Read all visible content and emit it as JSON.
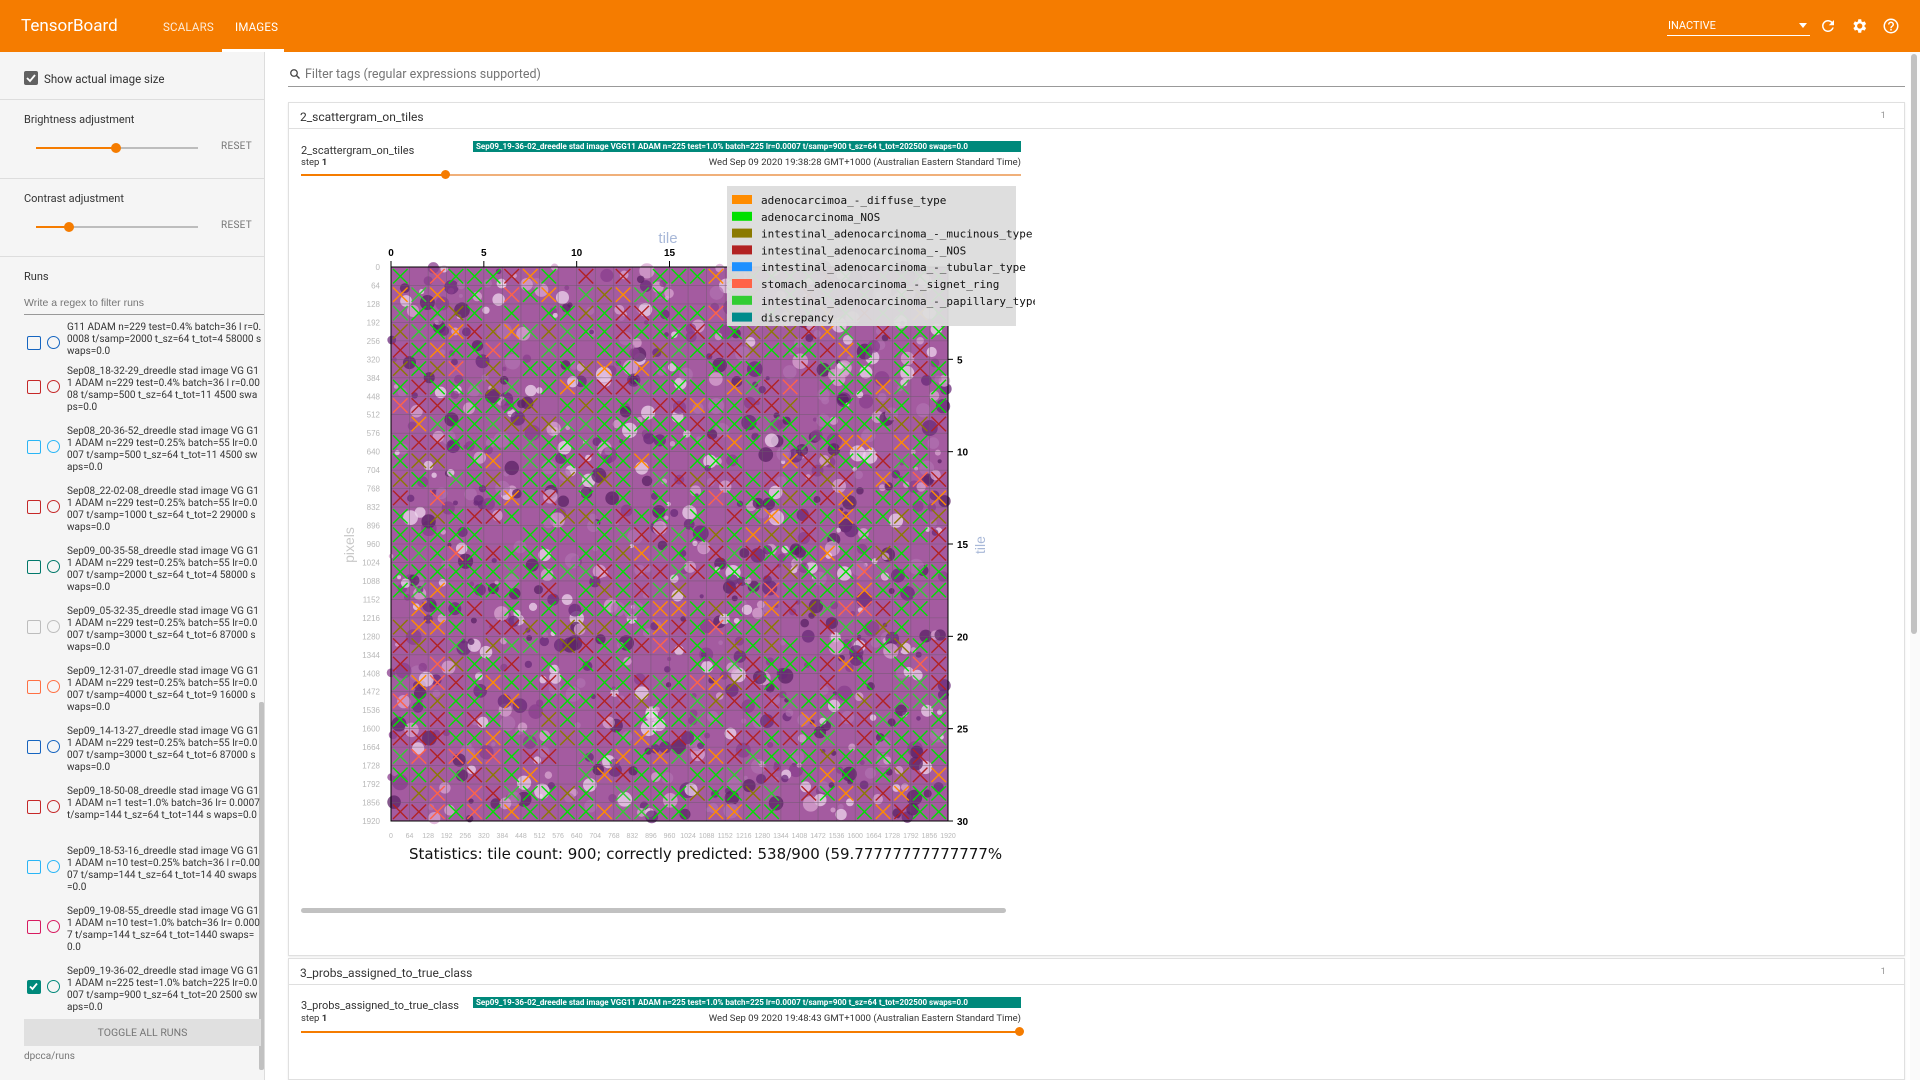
{
  "topbar": {
    "brand": "TensorBoard",
    "tabs": [
      {
        "label": "SCALARS"
      },
      {
        "label": "IMAGES",
        "active": true
      }
    ],
    "run_select": "INACTIVE",
    "icons": [
      "refresh-icon",
      "settings-icon",
      "help-icon"
    ],
    "color": "#f57c00"
  },
  "sidebar": {
    "show_actual_size": {
      "label": "Show actual image size",
      "checked": true
    },
    "brightness": {
      "label": "Brightness adjustment",
      "reset": "RESET",
      "level": 0.5
    },
    "contrast": {
      "label": "Contrast adjustment",
      "reset": "RESET",
      "level": 0.2
    },
    "runs_label": "Runs",
    "runs_placeholder": "Write a regex to filter runs",
    "runs": [
      {
        "text": "G11 ADAM n=229 test=0.4% batch=36 l r=0.0008 t/samp=2000 t_sz=64 t_tot=4 58000 swaps=0.0",
        "color": "#1565c0",
        "checked": false
      },
      {
        "text": "Sep08_18-32-29_dreedle stad image VG G11 ADAM n=229 test=0.4% batch=36 l r=0.0008 t/samp=500 t_sz=64 t_tot=11 4500 swaps=0.0",
        "color": "#c62828",
        "checked": false
      },
      {
        "text": "Sep08_20-36-52_dreedle stad image VG G11 ADAM n=229 test=0.25% batch=55 lr=0.0007 t/samp=500 t_sz=64 t_tot=11 4500 swaps=0.0",
        "color": "#29b6f6",
        "checked": false
      },
      {
        "text": "Sep08_22-02-08_dreedle stad image VG G11 ADAM n=229 test=0.25% batch=55 lr=0.0007 t/samp=1000 t_sz=64 t_tot=2 29000 swaps=0.0",
        "color": "#c62828",
        "checked": false
      },
      {
        "text": "Sep09_00-35-58_dreedle stad image VG G11 ADAM n=229 test=0.25% batch=55 lr=0.0007 t/samp=2000 t_sz=64 t_tot=4 58000 swaps=0.0",
        "color": "#00796b",
        "checked": false
      },
      {
        "text": "Sep09_05-32-35_dreedle stad image VG G11 ADAM n=229 test=0.25% batch=55 lr=0.0007 t/samp=3000 t_sz=64 t_tot=6 87000 swaps=0.0",
        "color": "#bdbdbd",
        "checked": false
      },
      {
        "text": "Sep09_12-31-07_dreedle stad image VG G11 ADAM n=229 test=0.25% batch=55 lr=0.0007 t/samp=4000 t_sz=64 t_tot=9 16000 swaps=0.0",
        "color": "#ff7043",
        "checked": false
      },
      {
        "text": "Sep09_14-13-27_dreedle stad image VG G11 ADAM n=229 test=0.25% batch=55 lr=0.0007 t/samp=3000 t_sz=64 t_tot=6 87000 swaps=0.0",
        "color": "#1565c0",
        "checked": false
      },
      {
        "text": "Sep09_18-50-08_dreedle stad image VG G11 ADAM n=1 test=1.0% batch=36 lr= 0.0007 t/samp=144 t_sz=64 t_tot=144 s waps=0.0",
        "color": "#c62828",
        "checked": false
      },
      {
        "text": "Sep09_18-53-16_dreedle stad image VG G11 ADAM n=10 test=0.25% batch=36 l r=0.0007 t/samp=144 t_sz=64 t_tot=14 40 swaps=0.0",
        "color": "#29b6f6",
        "checked": false
      },
      {
        "text": "Sep09_19-08-55_dreedle stad image VG G11 ADAM n=10 test=1.0% batch=36 lr= 0.0007 t/samp=144 t_sz=64 t_tot=1440 swaps=0.0",
        "color": "#d81b60",
        "checked": false
      },
      {
        "text": "Sep09_19-36-02_dreedle stad image VG G11 ADAM n=225 test=1.0% batch=225 lr=0.0007 t/samp=900 t_sz=64 t_tot=20 2500 swaps=0.0",
        "color": "#00897b",
        "checked": true
      }
    ],
    "toggle_all": "TOGGLE ALL RUNS",
    "logdir": "dpcca/runs"
  },
  "main": {
    "filter_placeholder": "Filter tags (regular expressions supported)",
    "sections": [
      {
        "title": "2_scattergram_on_tiles",
        "count": "1",
        "card": {
          "title": "2_scattergram_on_tiles",
          "step_label": "step",
          "step_value": "1",
          "step_level": 0.2,
          "run": "Sep09_19-36-02_dreedle stad image VGG11 ADAM n=225 test=1.0% batch=225 lr=0.0007 t/samp=900 t_sz=64 t_tot=202500 swaps=0.0",
          "timestamp": "Wed Sep 09 2020 19:38:28 GMT+1000 (Australian Eastern Standard Time)"
        }
      },
      {
        "title": "3_probs_assigned_to_true_class",
        "count": "1",
        "card": {
          "title": "3_probs_assigned_to_true_class",
          "step_label": "step",
          "step_value": "1",
          "step_level": 1.0,
          "run": "Sep09_19-36-02_dreedle stad image VGG11 ADAM n=225 test=1.0% batch=225 lr=0.0007 t/samp=900 t_sz=64 t_tot=202500 swaps=0.0",
          "timestamp": "Wed Sep 09 2020 19:48:43 GMT+1000 (Australian Eastern Standard Time)"
        }
      }
    ],
    "figure": {
      "top_axis_label": "tile",
      "right_axis_label": "tile",
      "left_axis_label": "pixels",
      "top_ticks": [
        "0",
        "5",
        "10",
        "15"
      ],
      "right_ticks": [
        "5",
        "10",
        "15",
        "20",
        "25",
        "30"
      ],
      "left_ticks": [
        "0",
        "64",
        "128",
        "192",
        "256",
        "320",
        "384",
        "448",
        "512",
        "576",
        "640",
        "704",
        "768",
        "832",
        "896",
        "960",
        "1024",
        "1088",
        "1152",
        "1216",
        "1280",
        "1344",
        "1408",
        "1472",
        "1536",
        "1600",
        "1664",
        "1728",
        "1792",
        "1856",
        "1920"
      ],
      "bottom_ticks": [
        "0",
        "64",
        "128",
        "192",
        "256",
        "320",
        "384",
        "448",
        "512",
        "576",
        "640",
        "704",
        "768",
        "832",
        "896",
        "960",
        "1024",
        "1088",
        "1152",
        "1216",
        "1280",
        "1344",
        "1408",
        "1472",
        "1536",
        "1600",
        "1664",
        "1728",
        "1792",
        "1856",
        "1920"
      ],
      "legend": [
        {
          "label": "adenocarcimoa_-_diffuse_type",
          "color": "#ff8c00"
        },
        {
          "label": "adenocarcinoma_NOS",
          "color": "#00e000"
        },
        {
          "label": "intestinal_adenocarcinoma_-_mucinous_type",
          "color": "#8b7a00"
        },
        {
          "label": "intestinal_adenocarcinoma_-_NOS",
          "color": "#b22222"
        },
        {
          "label": "intestinal_adenocarcinoma_-_tubular_type",
          "color": "#1e90ff"
        },
        {
          "label": "stomach_adenocarcinoma_-_signet_ring",
          "color": "#ff6347"
        },
        {
          "label": "intestinal_adenocarcinoma_-_papillary_type",
          "color": "#32cd32"
        },
        {
          "label": "discrepancy",
          "color": "#008b8b"
        }
      ],
      "statistics": "Statistics: tile count: 900; correctly predicted: 538/900 (59.77777777777777%"
    }
  }
}
